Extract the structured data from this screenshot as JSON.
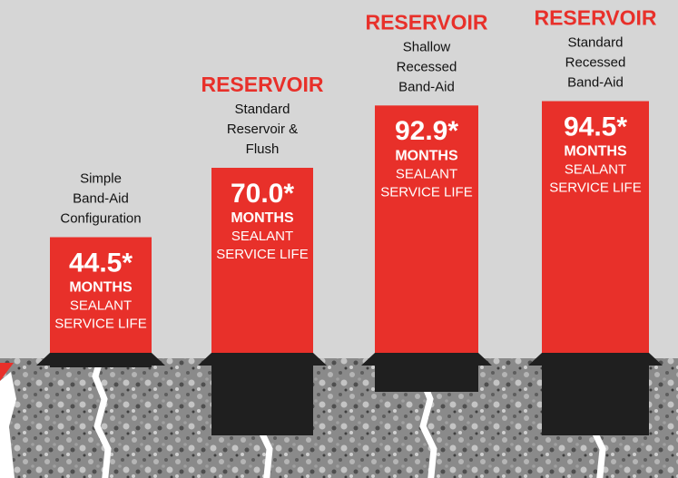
{
  "chart_data": {
    "type": "bar",
    "categories": [
      [
        "Simple",
        "Band-Aid",
        "Configuration"
      ],
      [
        "Standard",
        "Reservoir &",
        "Flush"
      ],
      [
        "Shallow",
        "Recessed",
        "Band-Aid"
      ],
      [
        "Standard",
        "Recessed",
        "Band-Aid"
      ]
    ],
    "headers": [
      null,
      "RESERVOIR",
      "RESERVOIR",
      "RESERVOIR"
    ],
    "values": [
      44.5,
      70.0,
      92.9,
      94.5
    ],
    "value_labels": [
      "44.5*",
      "70.0*",
      "92.9*",
      "94.5*"
    ],
    "unit": "MONTHS",
    "caption": [
      "SEALANT",
      "SERVICE LIFE"
    ],
    "color": "#e8302a"
  }
}
